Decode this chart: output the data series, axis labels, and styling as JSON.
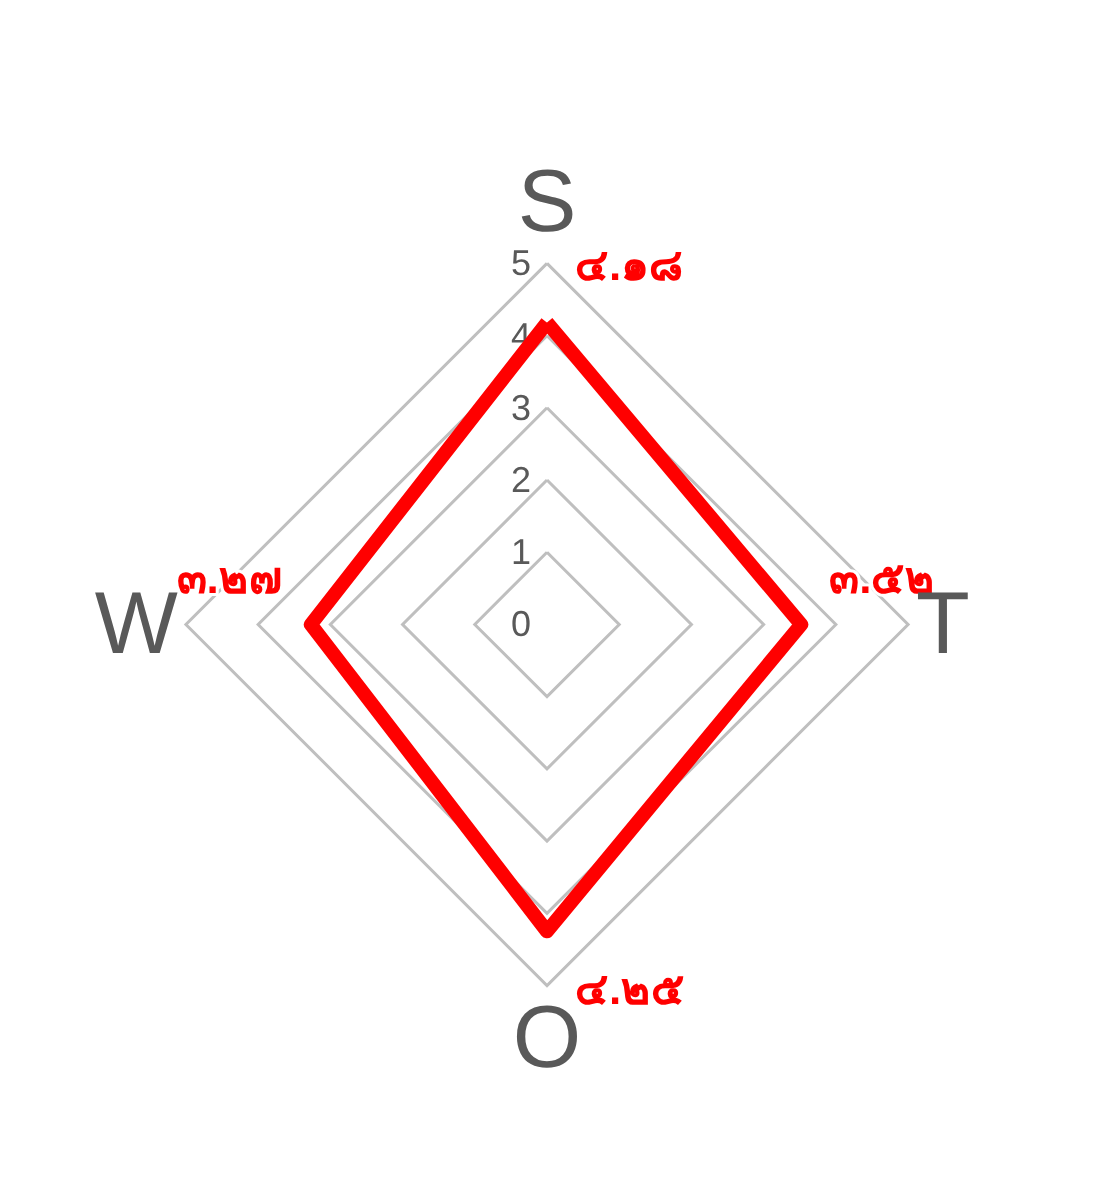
{
  "chart_data": {
    "type": "radar",
    "categories": [
      "S",
      "T",
      "O",
      "W"
    ],
    "series": [
      {
        "color": "#ff0000",
        "values": [
          4.18,
          3.52,
          4.25,
          3.27
        ],
        "value_labels": [
          "๔.๑๘",
          "๓.๕๒",
          "๔.๒๕",
          "๓.๒๗"
        ]
      }
    ],
    "ylim": [
      0,
      5
    ],
    "yticks": [
      0,
      1,
      2,
      3,
      4,
      5
    ],
    "grid": true,
    "marker": "none"
  }
}
